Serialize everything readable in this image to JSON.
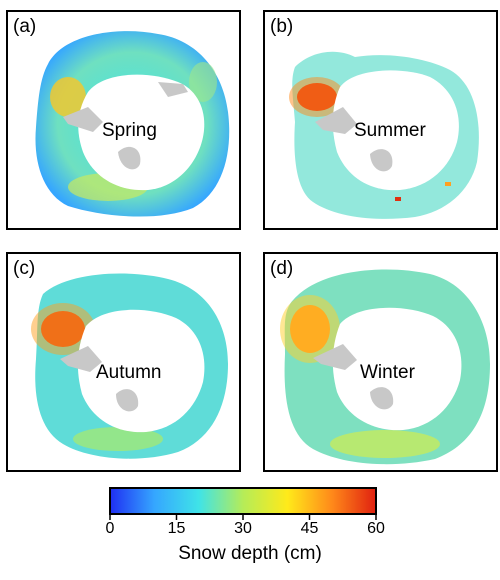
{
  "panels": [
    {
      "letter": "(a)",
      "season": "Spring"
    },
    {
      "letter": "(b)",
      "season": "Summer"
    },
    {
      "letter": "(c)",
      "season": "Autumn"
    },
    {
      "letter": "(d)",
      "season": "Winter"
    }
  ],
  "colorbar": {
    "title": "Snow depth (cm)",
    "ticks": [
      "0",
      "15",
      "30",
      "45",
      "60"
    ],
    "range": [
      0,
      60
    ],
    "colors": [
      "#1f2ff2",
      "#35a6ff",
      "#3fe3e8",
      "#b5ec58",
      "#ffea1a",
      "#ff8a1a",
      "#e02010"
    ]
  },
  "map_colors": {
    "land": "#c8c8c8",
    "land_edge": "#9a9a9a"
  }
}
